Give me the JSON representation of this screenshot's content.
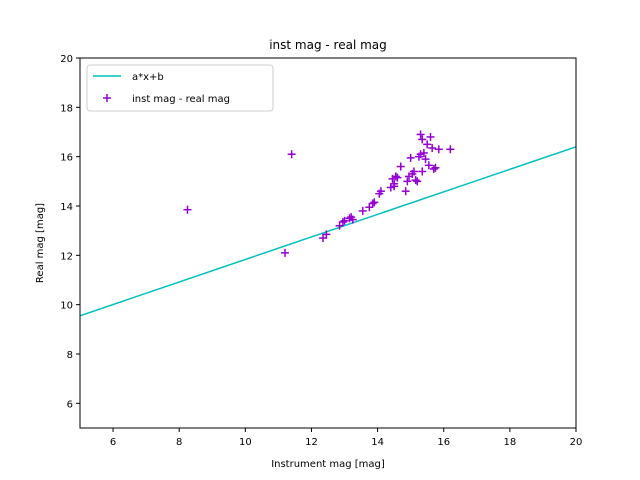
{
  "chart_data": {
    "type": "scatter",
    "title": "inst mag - real mag",
    "xlabel": "Instrument mag [mag]",
    "ylabel": "Real mag [mag]",
    "xlim": [
      5,
      20
    ],
    "ylim": [
      5,
      20
    ],
    "xticks": [
      6,
      8,
      10,
      12,
      14,
      16,
      18,
      20
    ],
    "yticks": [
      6,
      8,
      10,
      12,
      14,
      16,
      18,
      20
    ],
    "grid": false,
    "legend_position": "top-left",
    "series": [
      {
        "name": "a*x+b",
        "kind": "line",
        "color": "#00bfbf",
        "x": [
          5,
          20
        ],
        "y": [
          9.55,
          16.4
        ]
      },
      {
        "name": "inst mag - real mag",
        "kind": "scatter",
        "marker": "plus",
        "color": "#9400d3",
        "x": [
          8.25,
          11.2,
          11.4,
          12.35,
          12.45,
          12.85,
          12.95,
          13.0,
          13.15,
          13.2,
          13.25,
          13.55,
          13.75,
          13.85,
          13.9,
          14.05,
          14.1,
          14.4,
          14.45,
          14.5,
          14.55,
          14.5,
          14.6,
          14.7,
          14.85,
          14.9,
          14.95,
          15.0,
          15.05,
          15.1,
          15.15,
          15.2,
          15.25,
          15.3,
          15.3,
          15.35,
          15.35,
          15.4,
          15.45,
          15.5,
          15.55,
          15.6,
          15.65,
          15.7,
          15.75,
          15.85,
          16.2
        ],
        "y": [
          13.85,
          12.1,
          16.1,
          12.7,
          12.85,
          13.2,
          13.35,
          13.4,
          13.5,
          13.55,
          13.45,
          13.8,
          13.95,
          14.1,
          14.15,
          14.5,
          14.6,
          14.75,
          15.1,
          14.9,
          15.2,
          14.8,
          15.15,
          15.6,
          14.6,
          15.0,
          15.2,
          15.95,
          15.3,
          15.4,
          15.05,
          15.0,
          16.0,
          16.9,
          16.1,
          16.7,
          15.4,
          16.15,
          15.9,
          16.5,
          15.65,
          16.8,
          16.35,
          15.5,
          15.55,
          16.3,
          16.3
        ]
      }
    ]
  }
}
